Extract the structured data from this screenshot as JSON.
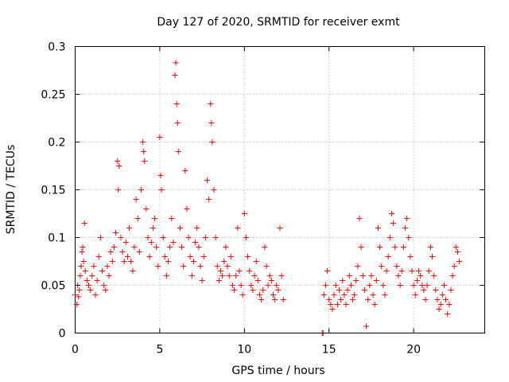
{
  "chart_data": {
    "type": "scatter",
    "title": "Day 127 of 2020, SRMTID for receiver exmt",
    "xlabel": "GPS time / hours",
    "ylabel": "SRMTID / TECUs",
    "xlim": [
      0,
      24.2
    ],
    "ylim": [
      0,
      0.3
    ],
    "xticks": [
      0,
      5,
      10,
      15,
      20
    ],
    "xtick_labels": [
      "0",
      "5",
      "10",
      "15",
      "20"
    ],
    "yticks": [
      0,
      0.05,
      0.1,
      0.15,
      0.2,
      0.25,
      0.3
    ],
    "ytick_labels": [
      "0",
      "0.05",
      "0.1",
      "0.15",
      "0.2",
      "0.25",
      "0.3"
    ],
    "grid": true,
    "marker": "+",
    "color": "#ff0000",
    "series": [
      {
        "name": "SRMTID",
        "points": [
          [
            0.0,
            0.04
          ],
          [
            0.1,
            0.03
          ],
          [
            0.15,
            0.05
          ],
          [
            0.2,
            0.038
          ],
          [
            0.25,
            0.045
          ],
          [
            0.3,
            0.06
          ],
          [
            0.35,
            0.07
          ],
          [
            0.4,
            0.085
          ],
          [
            0.45,
            0.09
          ],
          [
            0.5,
            0.075
          ],
          [
            0.55,
            0.115
          ],
          [
            0.6,
            0.065
          ],
          [
            0.7,
            0.055
          ],
          [
            0.8,
            0.05
          ],
          [
            0.9,
            0.045
          ],
          [
            1.0,
            0.06
          ],
          [
            1.1,
            0.07
          ],
          [
            1.2,
            0.04
          ],
          [
            1.3,
            0.055
          ],
          [
            1.4,
            0.08
          ],
          [
            1.5,
            0.1
          ],
          [
            1.6,
            0.065
          ],
          [
            1.7,
            0.05
          ],
          [
            1.8,
            0.045
          ],
          [
            1.9,
            0.07
          ],
          [
            2.0,
            0.06
          ],
          [
            2.1,
            0.085
          ],
          [
            2.2,
            0.075
          ],
          [
            2.3,
            0.09
          ],
          [
            2.4,
            0.105
          ],
          [
            2.5,
            0.18
          ],
          [
            2.55,
            0.15
          ],
          [
            2.6,
            0.175
          ],
          [
            2.7,
            0.1
          ],
          [
            2.8,
            0.085
          ],
          [
            2.9,
            0.075
          ],
          [
            3.0,
            0.095
          ],
          [
            3.1,
            0.08
          ],
          [
            3.2,
            0.11
          ],
          [
            3.3,
            0.075
          ],
          [
            3.4,
            0.065
          ],
          [
            3.5,
            0.09
          ],
          [
            3.6,
            0.14
          ],
          [
            3.7,
            0.12
          ],
          [
            3.8,
            0.085
          ],
          [
            3.9,
            0.15
          ],
          [
            4.0,
            0.2
          ],
          [
            4.05,
            0.19
          ],
          [
            4.1,
            0.18
          ],
          [
            4.2,
            0.13
          ],
          [
            4.3,
            0.1
          ],
          [
            4.4,
            0.08
          ],
          [
            4.5,
            0.095
          ],
          [
            4.6,
            0.11
          ],
          [
            4.7,
            0.12
          ],
          [
            4.8,
            0.09
          ],
          [
            4.9,
            0.07
          ],
          [
            5.0,
            0.205
          ],
          [
            5.05,
            0.165
          ],
          [
            5.1,
            0.15
          ],
          [
            5.2,
            0.1
          ],
          [
            5.3,
            0.08
          ],
          [
            5.4,
            0.06
          ],
          [
            5.5,
            0.075
          ],
          [
            5.6,
            0.09
          ],
          [
            5.7,
            0.12
          ],
          [
            5.8,
            0.095
          ],
          [
            5.9,
            0.27
          ],
          [
            5.95,
            0.283
          ],
          [
            6.0,
            0.24
          ],
          [
            6.05,
            0.22
          ],
          [
            6.1,
            0.19
          ],
          [
            6.2,
            0.11
          ],
          [
            6.3,
            0.09
          ],
          [
            6.4,
            0.07
          ],
          [
            6.5,
            0.17
          ],
          [
            6.6,
            0.13
          ],
          [
            6.7,
            0.1
          ],
          [
            6.8,
            0.08
          ],
          [
            6.9,
            0.06
          ],
          [
            7.0,
            0.075
          ],
          [
            7.1,
            0.095
          ],
          [
            7.2,
            0.11
          ],
          [
            7.3,
            0.09
          ],
          [
            7.4,
            0.07
          ],
          [
            7.5,
            0.055
          ],
          [
            7.6,
            0.08
          ],
          [
            7.7,
            0.1
          ],
          [
            7.8,
            0.16
          ],
          [
            7.9,
            0.14
          ],
          [
            8.0,
            0.24
          ],
          [
            8.05,
            0.22
          ],
          [
            8.1,
            0.2
          ],
          [
            8.2,
            0.15
          ],
          [
            8.3,
            0.1
          ],
          [
            8.4,
            0.07
          ],
          [
            8.5,
            0.055
          ],
          [
            8.6,
            0.065
          ],
          [
            8.7,
            0.06
          ],
          [
            8.8,
            0.075
          ],
          [
            8.9,
            0.09
          ],
          [
            9.0,
            0.07
          ],
          [
            9.1,
            0.06
          ],
          [
            9.2,
            0.08
          ],
          [
            9.3,
            0.05
          ],
          [
            9.4,
            0.045
          ],
          [
            9.5,
            0.06
          ],
          [
            9.6,
            0.11
          ],
          [
            9.7,
            0.065
          ],
          [
            9.8,
            0.05
          ],
          [
            9.9,
            0.04
          ],
          [
            10.0,
            0.125
          ],
          [
            10.1,
            0.1
          ],
          [
            10.2,
            0.08
          ],
          [
            10.3,
            0.065
          ],
          [
            10.4,
            0.05
          ],
          [
            10.5,
            0.045
          ],
          [
            10.6,
            0.06
          ],
          [
            10.7,
            0.075
          ],
          [
            10.8,
            0.055
          ],
          [
            10.9,
            0.04
          ],
          [
            11.0,
            0.035
          ],
          [
            11.1,
            0.045
          ],
          [
            11.2,
            0.09
          ],
          [
            11.3,
            0.07
          ],
          [
            11.4,
            0.05
          ],
          [
            11.5,
            0.06
          ],
          [
            11.6,
            0.055
          ],
          [
            11.7,
            0.04
          ],
          [
            11.8,
            0.035
          ],
          [
            11.9,
            0.05
          ],
          [
            12.0,
            0.045
          ],
          [
            12.1,
            0.11
          ],
          [
            12.2,
            0.06
          ],
          [
            12.3,
            0.035
          ],
          [
            14.6,
            0.0
          ],
          [
            14.65,
            0.0
          ],
          [
            14.7,
            0.04
          ],
          [
            14.8,
            0.05
          ],
          [
            14.9,
            0.065
          ],
          [
            15.0,
            0.035
          ],
          [
            15.1,
            0.03
          ],
          [
            15.2,
            0.025
          ],
          [
            15.3,
            0.04
          ],
          [
            15.4,
            0.05
          ],
          [
            15.5,
            0.03
          ],
          [
            15.6,
            0.045
          ],
          [
            15.7,
            0.035
          ],
          [
            15.8,
            0.055
          ],
          [
            15.9,
            0.04
          ],
          [
            16.0,
            0.03
          ],
          [
            16.1,
            0.045
          ],
          [
            16.2,
            0.06
          ],
          [
            16.3,
            0.05
          ],
          [
            16.4,
            0.035
          ],
          [
            16.5,
            0.04
          ],
          [
            16.6,
            0.055
          ],
          [
            16.7,
            0.07
          ],
          [
            16.8,
            0.12
          ],
          [
            16.9,
            0.09
          ],
          [
            17.0,
            0.06
          ],
          [
            17.1,
            0.045
          ],
          [
            17.2,
            0.007
          ],
          [
            17.3,
            0.035
          ],
          [
            17.4,
            0.05
          ],
          [
            17.5,
            0.06
          ],
          [
            17.6,
            0.04
          ],
          [
            17.7,
            0.03
          ],
          [
            17.8,
            0.055
          ],
          [
            17.9,
            0.11
          ],
          [
            18.0,
            0.09
          ],
          [
            18.1,
            0.07
          ],
          [
            18.2,
            0.05
          ],
          [
            18.3,
            0.04
          ],
          [
            18.4,
            0.065
          ],
          [
            18.5,
            0.08
          ],
          [
            18.6,
            0.1
          ],
          [
            18.7,
            0.125
          ],
          [
            18.8,
            0.115
          ],
          [
            18.9,
            0.09
          ],
          [
            19.0,
            0.07
          ],
          [
            19.1,
            0.06
          ],
          [
            19.2,
            0.05
          ],
          [
            19.3,
            0.065
          ],
          [
            19.4,
            0.09
          ],
          [
            19.5,
            0.11
          ],
          [
            19.6,
            0.12
          ],
          [
            19.7,
            0.1
          ],
          [
            19.8,
            0.08
          ],
          [
            19.9,
            0.065
          ],
          [
            20.0,
            0.05
          ],
          [
            20.1,
            0.04
          ],
          [
            20.2,
            0.055
          ],
          [
            20.3,
            0.065
          ],
          [
            20.4,
            0.06
          ],
          [
            20.5,
            0.05
          ],
          [
            20.6,
            0.045
          ],
          [
            20.7,
            0.035
          ],
          [
            20.8,
            0.05
          ],
          [
            20.9,
            0.065
          ],
          [
            21.0,
            0.09
          ],
          [
            21.1,
            0.08
          ],
          [
            21.2,
            0.06
          ],
          [
            21.3,
            0.045
          ],
          [
            21.4,
            0.035
          ],
          [
            21.5,
            0.025
          ],
          [
            21.6,
            0.03
          ],
          [
            21.7,
            0.04
          ],
          [
            21.8,
            0.05
          ],
          [
            21.9,
            0.035
          ],
          [
            22.0,
            0.02
          ],
          [
            22.1,
            0.03
          ],
          [
            22.2,
            0.045
          ],
          [
            22.3,
            0.06
          ],
          [
            22.4,
            0.07
          ],
          [
            22.5,
            0.09
          ],
          [
            22.6,
            0.085
          ],
          [
            22.7,
            0.075
          ]
        ]
      }
    ]
  }
}
